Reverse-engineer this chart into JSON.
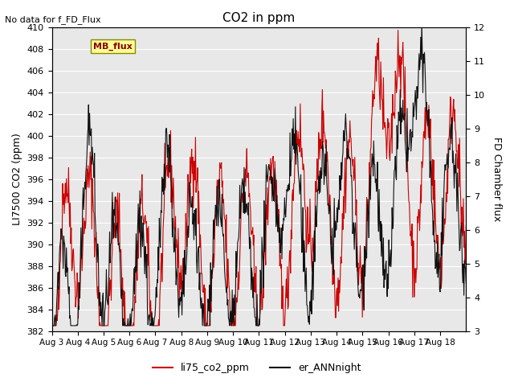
{
  "title": "CO2 in ppm",
  "ylabel_left": "LI7500 CO2 (ppm)",
  "ylabel_right": "FD Chamber flux",
  "ylim_left": [
    382,
    410
  ],
  "ylim_right": [
    3.0,
    12.0
  ],
  "yticks_left": [
    382,
    384,
    386,
    388,
    390,
    392,
    394,
    396,
    398,
    400,
    402,
    404,
    406,
    408,
    410
  ],
  "yticks_right": [
    3.0,
    4.0,
    5.0,
    6.0,
    7.0,
    8.0,
    9.0,
    10.0,
    11.0,
    12.0
  ],
  "xtick_labels": [
    "Aug 3",
    "Aug 4",
    "Aug 5",
    "Aug 6",
    "Aug 7",
    "Aug 8",
    "Aug 9",
    "Aug 10",
    "Aug 11",
    "Aug 12",
    "Aug 13",
    "Aug 14",
    "Aug 15",
    "Aug 16",
    "Aug 17",
    "Aug 18"
  ],
  "no_data_text": "No data for f_FD_Flux",
  "mb_flux_label": "MB_flux",
  "legend_red": "li75_co2_ppm",
  "legend_black": "er_ANNnight",
  "line_red_color": "#cc0000",
  "line_black_color": "#111111",
  "plot_bg_color": "#e8e8e8"
}
